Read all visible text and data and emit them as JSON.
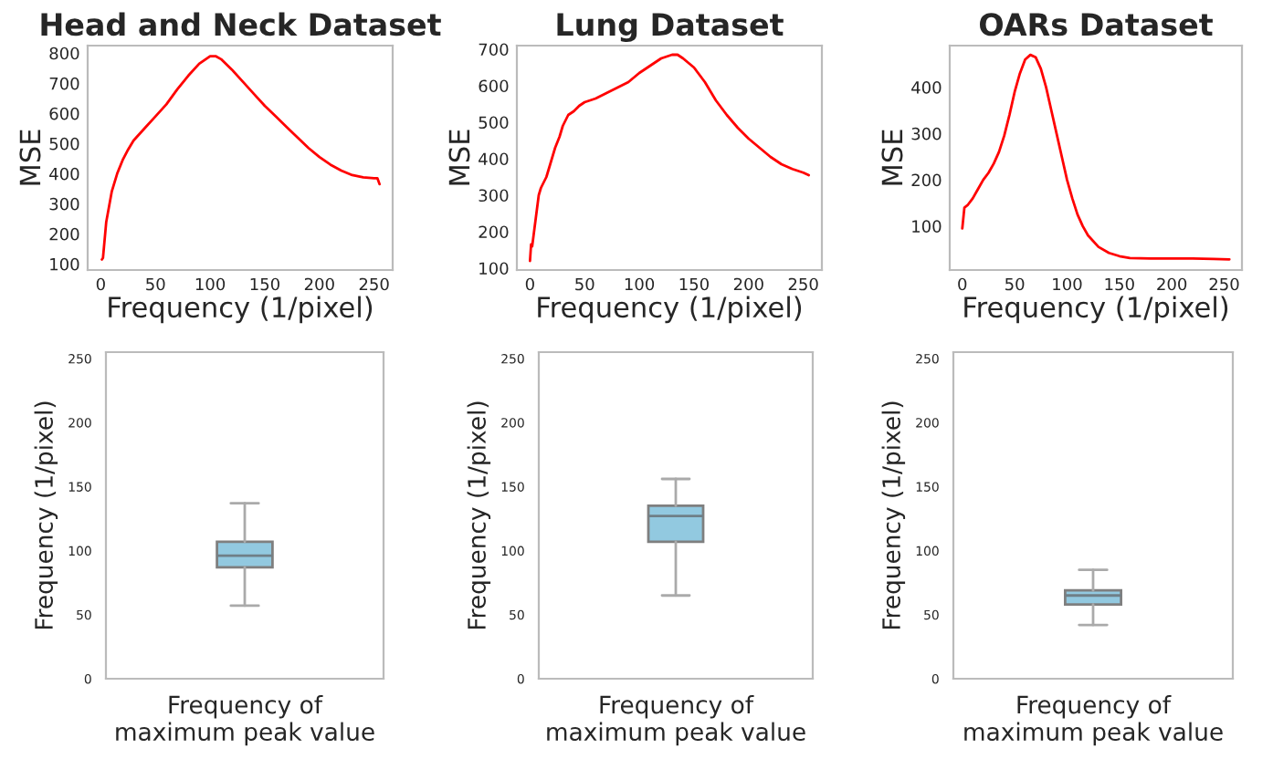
{
  "chart_data": [
    {
      "type": "line",
      "title": "Head and Neck Dataset",
      "xlabel": "Frequency (1/pixel)",
      "ylabel": "MSE",
      "xlim": [
        -12,
        267
      ],
      "xticks": [
        0,
        50,
        100,
        150,
        200,
        250
      ],
      "ylim": [
        80,
        825
      ],
      "yticks": [
        100,
        200,
        300,
        400,
        500,
        600,
        700,
        800
      ],
      "grid": false,
      "legend": false,
      "series": [
        {
          "color": "#ff0000",
          "x": [
            1,
            2,
            5,
            10,
            15,
            20,
            25,
            30,
            40,
            50,
            60,
            70,
            80,
            90,
            100,
            105,
            110,
            120,
            130,
            140,
            150,
            160,
            170,
            180,
            190,
            200,
            210,
            220,
            230,
            240,
            250,
            253,
            255
          ],
          "values": [
            115,
            120,
            240,
            340,
            400,
            445,
            480,
            510,
            550,
            590,
            630,
            680,
            725,
            765,
            790,
            790,
            780,
            745,
            705,
            665,
            625,
            590,
            555,
            520,
            485,
            455,
            430,
            410,
            395,
            388,
            385,
            385,
            365
          ]
        }
      ]
    },
    {
      "type": "line",
      "title": "Lung Dataset",
      "xlabel": "Frequency (1/pixel)",
      "ylabel": "MSE",
      "xlim": [
        -12,
        267
      ],
      "xticks": [
        0,
        50,
        100,
        150,
        200,
        250
      ],
      "ylim": [
        95,
        710
      ],
      "yticks": [
        100,
        200,
        300,
        400,
        500,
        600,
        700
      ],
      "grid": false,
      "legend": false,
      "series": [
        {
          "color": "#ff0000",
          "x": [
            0,
            1,
            2,
            5,
            8,
            10,
            15,
            20,
            23,
            27,
            30,
            35,
            40,
            45,
            50,
            60,
            70,
            80,
            90,
            100,
            110,
            120,
            130,
            135,
            140,
            150,
            160,
            170,
            180,
            190,
            200,
            210,
            220,
            230,
            240,
            250,
            255
          ],
          "values": [
            120,
            165,
            160,
            230,
            300,
            320,
            350,
            400,
            430,
            460,
            490,
            520,
            530,
            545,
            555,
            565,
            580,
            595,
            610,
            635,
            655,
            675,
            685,
            685,
            675,
            650,
            610,
            560,
            520,
            485,
            455,
            430,
            405,
            385,
            372,
            362,
            355
          ]
        }
      ]
    },
    {
      "type": "line",
      "title": "OARs Dataset",
      "xlabel": "Frequency (1/pixel)",
      "ylabel": "MSE",
      "xlim": [
        -12,
        267
      ],
      "xticks": [
        0,
        50,
        100,
        150,
        200,
        250
      ],
      "ylim": [
        5,
        490
      ],
      "yticks": [
        100,
        200,
        300,
        400
      ],
      "grid": false,
      "legend": false,
      "series": [
        {
          "color": "#ff0000",
          "x": [
            0,
            2,
            5,
            10,
            15,
            20,
            25,
            30,
            35,
            40,
            45,
            50,
            55,
            60,
            65,
            70,
            75,
            80,
            85,
            90,
            95,
            100,
            105,
            110,
            115,
            120,
            130,
            140,
            150,
            160,
            180,
            200,
            220,
            240,
            255
          ],
          "values": [
            95,
            140,
            145,
            160,
            180,
            200,
            215,
            235,
            260,
            295,
            340,
            390,
            430,
            460,
            470,
            465,
            440,
            400,
            350,
            300,
            250,
            200,
            160,
            125,
            100,
            80,
            55,
            42,
            35,
            31,
            30,
            30,
            30,
            29,
            28
          ]
        }
      ]
    },
    {
      "type": "box",
      "xlabel": "Frequency of\nmaximum peak value",
      "ylabel": "Frequency (1/pixel)",
      "categories": [
        null
      ],
      "ylim": [
        0,
        255
      ],
      "yticks": [
        0,
        50,
        100,
        150,
        200,
        250
      ],
      "grid": false,
      "legend": false,
      "colors": [
        "#92c9e0"
      ],
      "boxes": [
        {
          "low": 57,
          "q1": 87,
          "median": 96,
          "q3": 107,
          "high": 137
        }
      ]
    },
    {
      "type": "box",
      "xlabel": "Frequency of\nmaximum peak value",
      "ylabel": "Frequency (1/pixel)",
      "categories": [
        null
      ],
      "ylim": [
        0,
        255
      ],
      "yticks": [
        0,
        50,
        100,
        150,
        200,
        250
      ],
      "grid": false,
      "legend": false,
      "colors": [
        "#92c9e0"
      ],
      "boxes": [
        {
          "low": 65,
          "q1": 107,
          "median": 127,
          "q3": 135,
          "high": 156
        }
      ]
    },
    {
      "type": "box",
      "xlabel": "Frequency of\nmaximum peak value",
      "ylabel": "Frequency (1/pixel)",
      "categories": [
        null
      ],
      "ylim": [
        0,
        255
      ],
      "yticks": [
        0,
        50,
        100,
        150,
        200,
        250
      ],
      "grid": false,
      "legend": false,
      "colors": [
        "#92c9e0"
      ],
      "boxes": [
        {
          "low": 42,
          "q1": 58,
          "median": 65,
          "q3": 69,
          "high": 85
        }
      ]
    }
  ]
}
